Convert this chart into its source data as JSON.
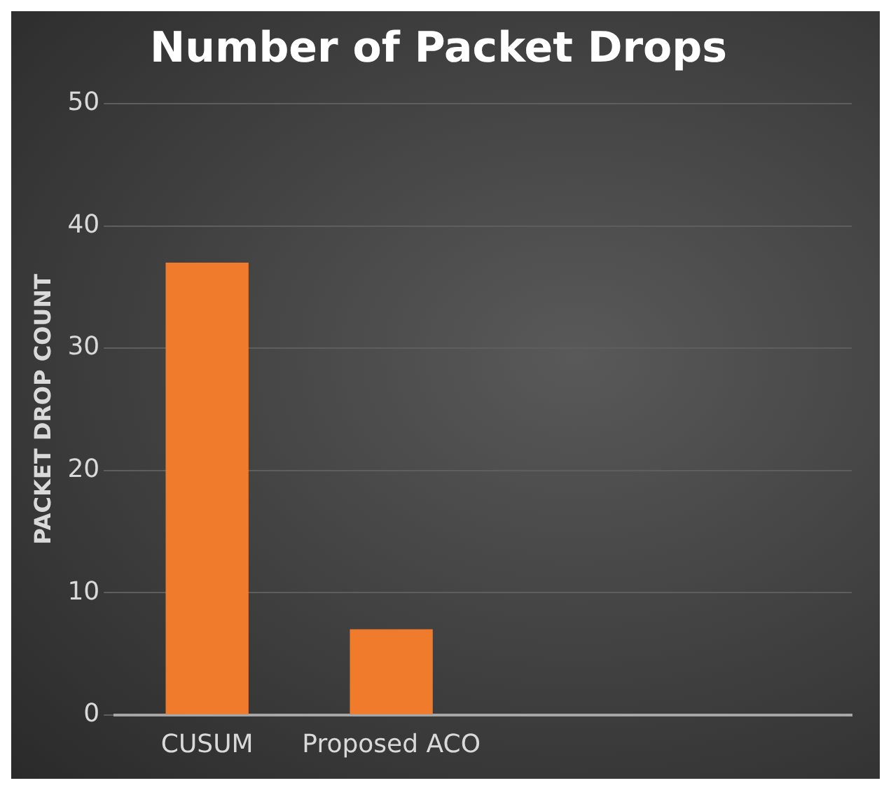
{
  "chart_data": {
    "type": "bar",
    "title": "Number of Packet Drops",
    "ylabel": "PACKET DROP COUNT",
    "categories": [
      "CUSUM",
      "Proposed ACO",
      null,
      null
    ],
    "values": [
      37,
      7,
      null,
      null
    ],
    "color": "#f07b2c",
    "ylim": [
      0,
      50
    ],
    "yticks": [
      0,
      10,
      20,
      30,
      40,
      50
    ],
    "grid": "y",
    "legend": false
  }
}
